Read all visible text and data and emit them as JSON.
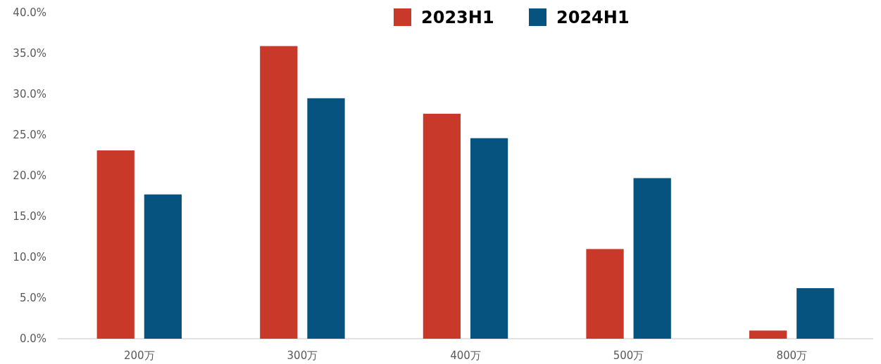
{
  "chart_data": {
    "type": "bar",
    "categories": [
      "200万",
      "300万",
      "400万",
      "500万",
      "800万"
    ],
    "series": [
      {
        "name": "2023H1",
        "color": "#c9392a",
        "values": [
          23.1,
          35.9,
          27.6,
          11.0,
          1.0
        ]
      },
      {
        "name": "2024H1",
        "color": "#06537f",
        "values": [
          17.7,
          29.5,
          24.6,
          19.7,
          6.2
        ]
      }
    ],
    "ylim": [
      0,
      40
    ],
    "yticks": [
      {
        "value": 0,
        "label": "0.0%"
      },
      {
        "value": 5,
        "label": "5.0%"
      },
      {
        "value": 10,
        "label": "10.0%"
      },
      {
        "value": 15,
        "label": "15.0%"
      },
      {
        "value": 20,
        "label": "20.0%"
      },
      {
        "value": 25,
        "label": "25.0%"
      },
      {
        "value": 30,
        "label": "30.0%"
      },
      {
        "value": 35,
        "label": "35.0%"
      },
      {
        "value": 40,
        "label": "40.0%"
      }
    ],
    "grid": false,
    "legend": "top"
  }
}
